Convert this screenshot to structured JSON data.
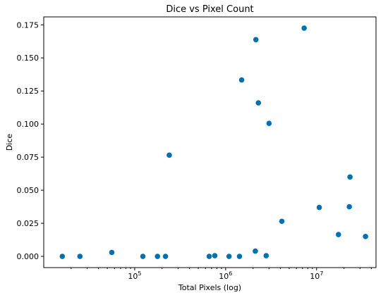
{
  "chart_data": {
    "type": "scatter",
    "title": "Dice vs Pixel Count",
    "xlabel": "Total Pixels (log)",
    "ylabel": "Dice",
    "x_scale": "log",
    "xlim": [
      10000,
      45000000
    ],
    "ylim": [
      -0.0085,
      0.181
    ],
    "x_ticks": [
      {
        "value": 100000,
        "base": "10",
        "exp": "5"
      },
      {
        "value": 1000000,
        "base": "10",
        "exp": "6"
      },
      {
        "value": 10000000,
        "base": "10",
        "exp": "7"
      }
    ],
    "y_ticks": [
      {
        "value": 0.0,
        "label": "0.000"
      },
      {
        "value": 0.025,
        "label": "0.025"
      },
      {
        "value": 0.05,
        "label": "0.050"
      },
      {
        "value": 0.075,
        "label": "0.075"
      },
      {
        "value": 0.1,
        "label": "0.100"
      },
      {
        "value": 0.125,
        "label": "0.125"
      },
      {
        "value": 0.15,
        "label": "0.150"
      },
      {
        "value": 0.175,
        "label": "0.175"
      }
    ],
    "grid": false,
    "color": "#0072b2",
    "points": [
      {
        "x": 16000,
        "y": 0.0
      },
      {
        "x": 25000,
        "y": 0.0
      },
      {
        "x": 56000,
        "y": 0.003
      },
      {
        "x": 123000,
        "y": 0.0
      },
      {
        "x": 178000,
        "y": 0.0
      },
      {
        "x": 218000,
        "y": 0.0
      },
      {
        "x": 240000,
        "y": 0.0765
      },
      {
        "x": 660000,
        "y": 0.0
      },
      {
        "x": 760000,
        "y": 0.0005
      },
      {
        "x": 1090000,
        "y": 0.0
      },
      {
        "x": 1420000,
        "y": 0.0
      },
      {
        "x": 1500000,
        "y": 0.1333
      },
      {
        "x": 2120000,
        "y": 0.004
      },
      {
        "x": 2150000,
        "y": 0.1638
      },
      {
        "x": 2290000,
        "y": 0.116
      },
      {
        "x": 2790000,
        "y": 0.0005
      },
      {
        "x": 3000000,
        "y": 0.1005
      },
      {
        "x": 4150000,
        "y": 0.0265
      },
      {
        "x": 7300000,
        "y": 0.1725
      },
      {
        "x": 10700000,
        "y": 0.037
      },
      {
        "x": 17400000,
        "y": 0.0165
      },
      {
        "x": 22900000,
        "y": 0.0375
      },
      {
        "x": 23300000,
        "y": 0.06
      },
      {
        "x": 34500000,
        "y": 0.015
      }
    ]
  }
}
